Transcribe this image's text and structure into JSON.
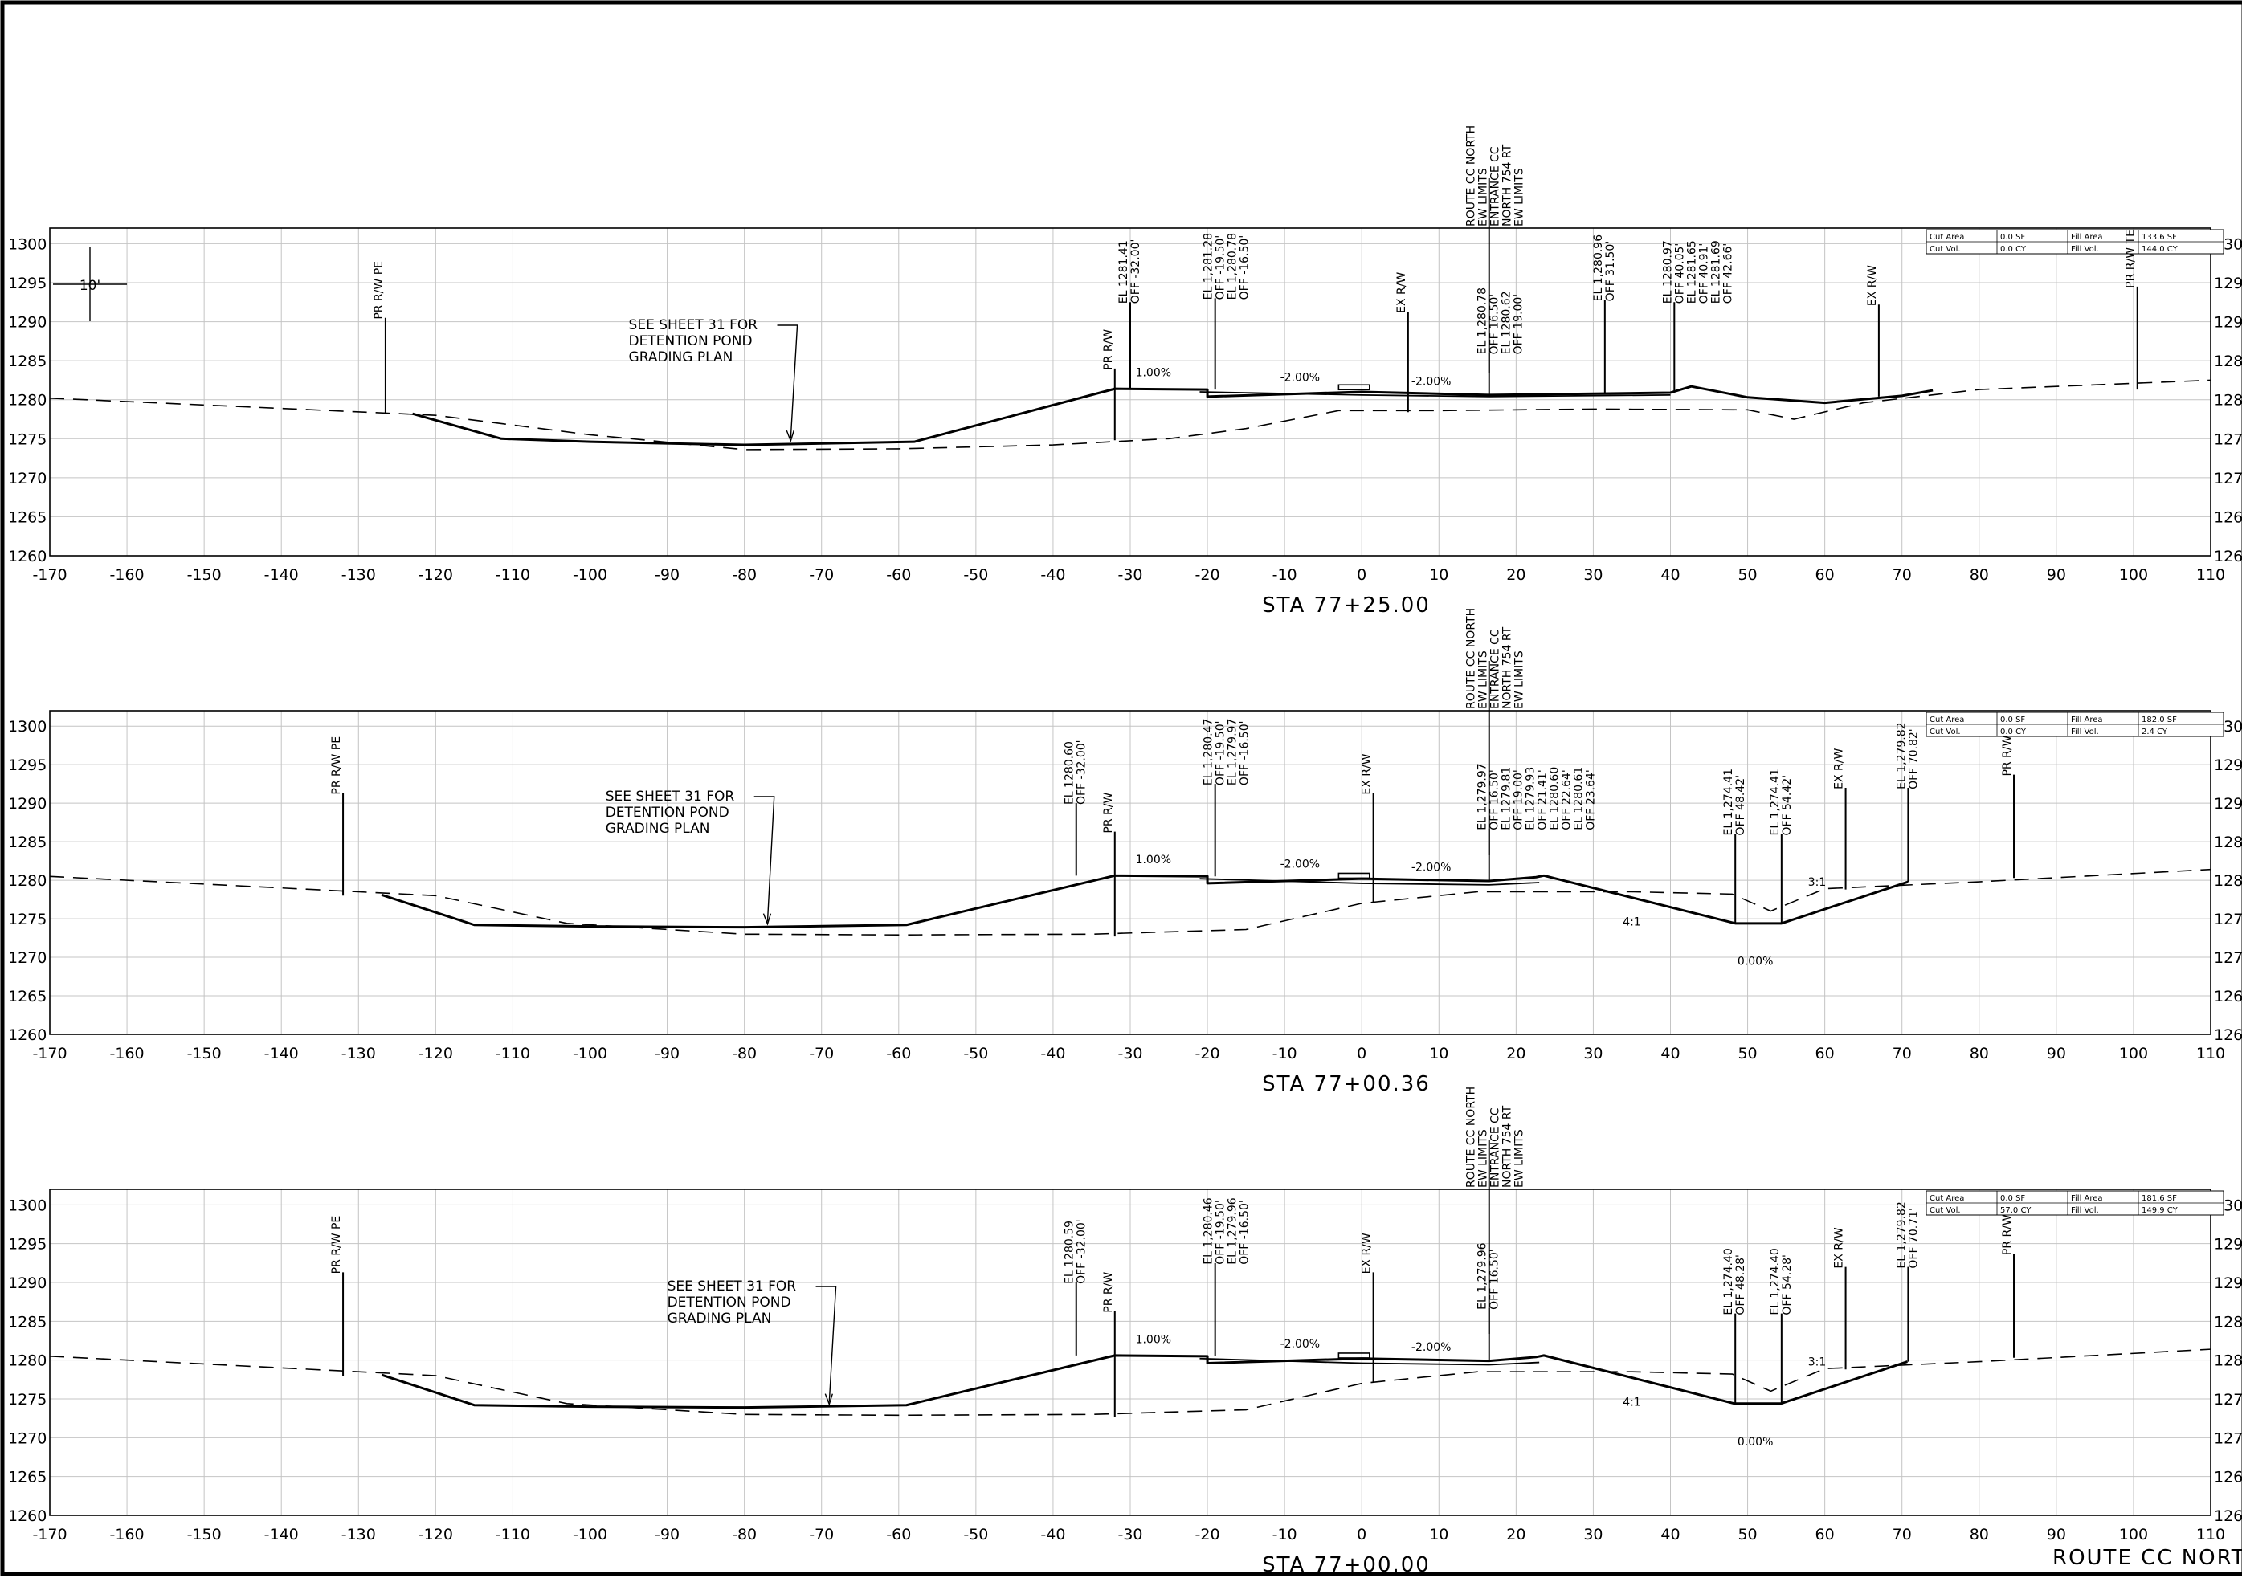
{
  "sheet_route": "ROUTE CC NORTH",
  "elev_labels": [
    "1300",
    "1295",
    "1290",
    "1285",
    "1280",
    "1275",
    "1270",
    "1265",
    "1260"
  ],
  "offset_labels": [
    "-170",
    "-160",
    "-150",
    "-140",
    "-130",
    "-120",
    "-110",
    "-100",
    "-90",
    "-80",
    "-70",
    "-60",
    "-50",
    "-40",
    "-30",
    "-20",
    "-10",
    "0",
    "10",
    "20",
    "30",
    "40",
    "50",
    "60",
    "70",
    "80",
    "90",
    "100",
    "110"
  ],
  "scale_bar": "10'",
  "legend_cc": "ROUTE CC NORTH\nEW LIMITS\nENTRANCE CC\nNORTH 754 RT\nEW LIMITS",
  "sections": [
    {
      "station": "STA 77+25.00",
      "quantities": {
        "cut_area_label": "Cut Area",
        "cut_area": "0.0 SF",
        "fill_area_label": "Fill Area",
        "fill_area": "133.6 SF",
        "cut_vol_label": "Cut Vol.",
        "cut_vol": "0.0 CY",
        "fill_vol_label": "Fill Vol.",
        "fill_vol": "144.0 CY"
      },
      "note": "SEE SHEET 31 FOR\nDETENTION POND\nGRADING PLAN",
      "slopes": {
        "s1": "1.00%",
        "s2": "-2.00%",
        "s3": "-2.00%"
      },
      "labels": {
        "pr_rw_pe": "PR R/W PE",
        "pr_rw_left": "PR R/W",
        "el_left": "EL 1281.41\nOFF -32.00'",
        "el_left2": "EL 1,281.28\nOFF -19.50'\nEL 1,280.78\nOFF -16.50'",
        "ex_rw_left": "EX R/W",
        "el_right1": "EL 1,280.78\nOFF 16.50'\nEL 1280.62\nOFF 19.00'",
        "el_right2": "EL 1,280.96\nOFF 31.50'",
        "el_right3": "EL 1280.97\nOFF 40.05'\nEL 1281.65\nOFF 40.91'\nEL 1281.69\nOFF 42.66'",
        "ex_rw_right": "EX R/W",
        "pr_rw_te": "PR R/W TE"
      }
    },
    {
      "station": "STA 77+00.36",
      "quantities": {
        "cut_area_label": "Cut Area",
        "cut_area": "0.0 SF",
        "fill_area_label": "Fill Area",
        "fill_area": "182.0 SF",
        "cut_vol_label": "Cut Vol.",
        "cut_vol": "0.0 CY",
        "fill_vol_label": "Fill Vol.",
        "fill_vol": "2.4 CY"
      },
      "note": "SEE SHEET 31 FOR\nDETENTION POND\nGRADING PLAN",
      "slopes": {
        "s1": "1.00%",
        "s2": "-2.00%",
        "s3": "-2.00%",
        "s4": "4:1",
        "s5": "3:1",
        "s6": "0.00%"
      },
      "labels": {
        "pr_rw_pe": "PR R/W PE",
        "el_left": "EL 1280.60\nOFF -32.00'",
        "pr_rw_left": "PR R/W",
        "el_left2": "EL 1,280.47\nOFF -19.50'\nEL 1,279.97\nOFF -16.50'",
        "ex_rw_left": "EX R/W",
        "el_right1": "EL 1,279.97\nOFF 16.50'\nEL 1279.81\nOFF 19.00'\nEL 1279.93\nOFF 21.41'\nEL 1280.60\nOFF 22.64'\nEL 1280.61\nOFF 23.64'",
        "el_ditch1": "EL 1,274.41\nOFF 48.42'",
        "el_ditch2": "EL 1,274.41\nOFF 54.42'",
        "ex_rw_right": "EX R/W",
        "el_right3": "EL 1,279.82\nOFF 70.82'",
        "pr_rw_right": "PR R/W"
      }
    },
    {
      "station": "STA 77+00.00",
      "quantities": {
        "cut_area_label": "Cut Area",
        "cut_area": "0.0 SF",
        "fill_area_label": "Fill Area",
        "fill_area": "181.6 SF",
        "cut_vol_label": "Cut Vol.",
        "cut_vol": "57.0 CY",
        "fill_vol_label": "Fill Vol.",
        "fill_vol": "149.9 CY"
      },
      "note": "SEE SHEET 31 FOR\nDETENTION POND\nGRADING PLAN",
      "slopes": {
        "s1": "1.00%",
        "s2": "-2.00%",
        "s3": "-2.00%",
        "s4": "4:1",
        "s5": "3:1",
        "s6": "0.00%"
      },
      "labels": {
        "pr_rw_pe": "PR R/W PE",
        "el_left": "EL 1280.59\nOFF -32.00'",
        "pr_rw_left": "PR R/W",
        "el_left2": "EL 1,280.46\nOFF -19.50'\nEL 1,279.96\nOFF -16.50'",
        "ex_rw_left": "EX R/W",
        "el_right1": "EL 1,279.96\nOFF 16.50'",
        "el_ditch1": "EL 1,274.40\nOFF 48.28'",
        "el_ditch2": "EL 1,274.40\nOFF 54.28'",
        "ex_rw_right": "EX R/W",
        "el_right3": "EL 1,279.82\nOFF 70.71'",
        "pr_rw_right": "PR R/W"
      }
    }
  ]
}
